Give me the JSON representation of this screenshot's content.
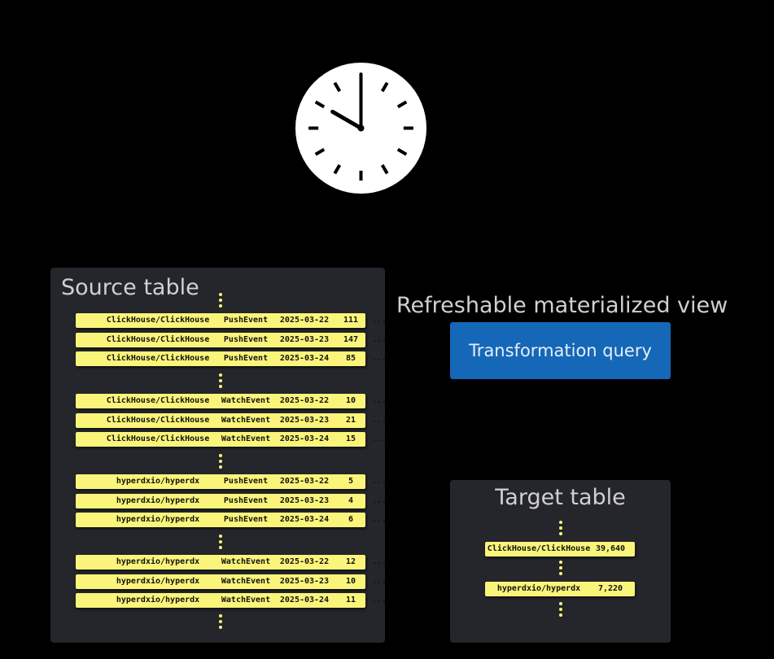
{
  "clock": {
    "hour": 10,
    "minute": 0
  },
  "source_table": {
    "title": "Source table",
    "groups": [
      [
        [
          "ClickHouse/ClickHouse",
          "PushEvent",
          "2025-03-22",
          "111",
          "..."
        ],
        [
          "ClickHouse/ClickHouse",
          "PushEvent",
          "2025-03-23",
          "147",
          "..."
        ],
        [
          "ClickHouse/ClickHouse",
          "PushEvent",
          "2025-03-24",
          "85",
          "..."
        ]
      ],
      [
        [
          "ClickHouse/ClickHouse",
          "WatchEvent",
          "2025-03-22",
          "10",
          "..."
        ],
        [
          "ClickHouse/ClickHouse",
          "WatchEvent",
          "2025-03-23",
          "21",
          "..."
        ],
        [
          "ClickHouse/ClickHouse",
          "WatchEvent",
          "2025-03-24",
          "15",
          "..."
        ]
      ],
      [
        [
          "hyperdxio/hyperdx",
          "PushEvent",
          "2025-03-22",
          "5",
          "..."
        ],
        [
          "hyperdxio/hyperdx",
          "PushEvent",
          "2025-03-23",
          "4",
          "..."
        ],
        [
          "hyperdxio/hyperdx",
          "PushEvent",
          "2025-03-24",
          "6",
          "..."
        ]
      ],
      [
        [
          "hyperdxio/hyperdx",
          "WatchEvent",
          "2025-03-22",
          "12",
          "..."
        ],
        [
          "hyperdxio/hyperdx",
          "WatchEvent",
          "2025-03-23",
          "10",
          "..."
        ],
        [
          "hyperdxio/hyperdx",
          "WatchEvent",
          "2025-03-24",
          "11",
          "..."
        ]
      ]
    ]
  },
  "mv": {
    "title": "Refreshable materialized view",
    "query_label": "Transformation query"
  },
  "target_table": {
    "title": "Target table",
    "rows": [
      [
        "ClickHouse/ClickHouse",
        "39,640"
      ],
      [
        "hyperdxio/hyperdx",
        "7,220"
      ]
    ]
  },
  "colors": {
    "panel": "#25262b",
    "row": "#faf57a",
    "query": "#1567b8"
  }
}
